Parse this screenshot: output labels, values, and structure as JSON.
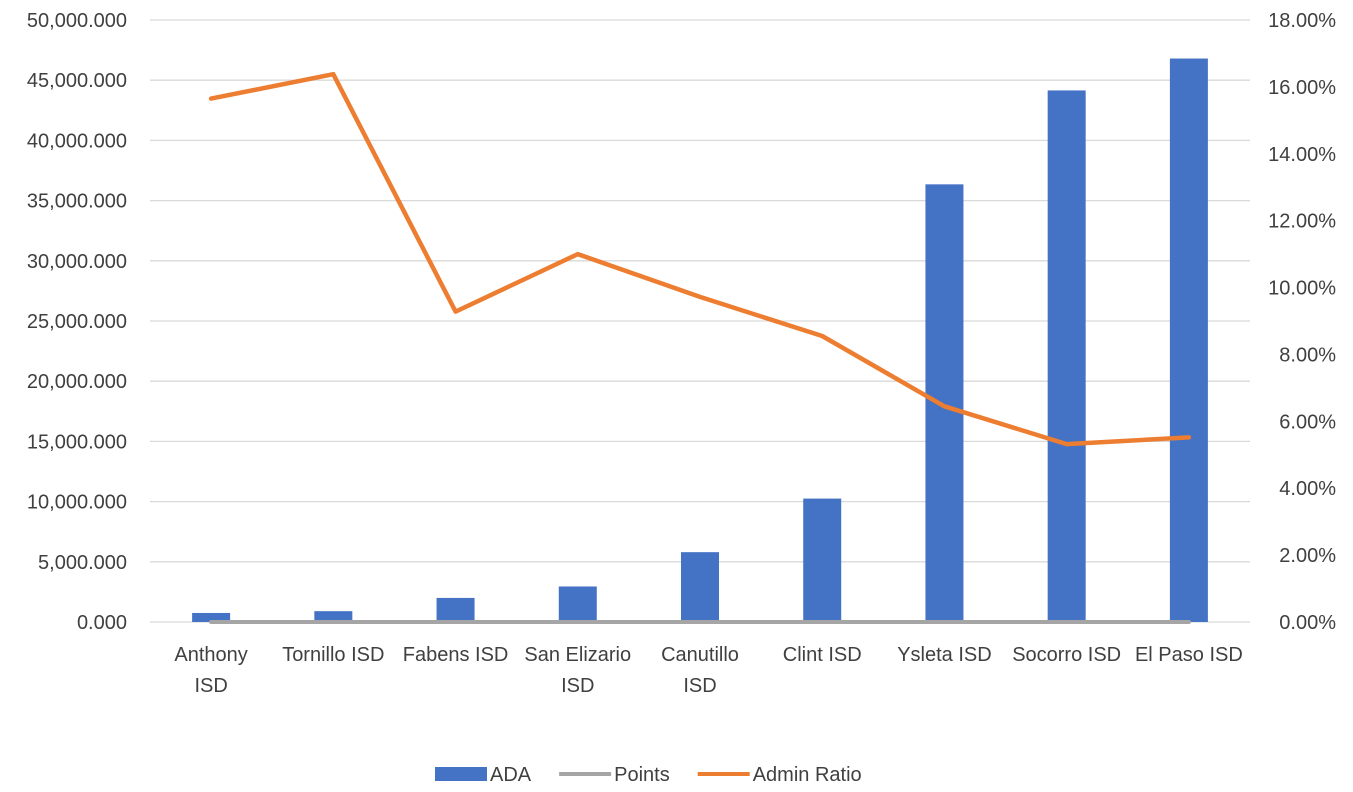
{
  "chart_data": {
    "type": "bar",
    "categories": [
      [
        "Anthony",
        "ISD"
      ],
      [
        "Tornillo ISD"
      ],
      [
        "Fabens ISD"
      ],
      [
        "San Elizario",
        "ISD"
      ],
      [
        "Canutillo",
        "ISD"
      ],
      [
        "Clint ISD"
      ],
      [
        "Ysleta ISD"
      ],
      [
        "Socorro ISD"
      ],
      [
        "El Paso ISD"
      ]
    ],
    "series": [
      {
        "name": "ADA",
        "kind": "bar",
        "axis": "left",
        "color": "#4472C4",
        "values": [
          750,
          900,
          2000,
          2950,
          5800,
          10250,
          36350,
          44150,
          46800
        ]
      },
      {
        "name": "Points",
        "kind": "line",
        "axis": "left",
        "color": "#A5A5A5",
        "values": [
          0,
          0,
          0,
          0,
          0,
          0,
          0,
          0,
          0
        ]
      },
      {
        "name": "Admin Ratio",
        "kind": "line",
        "axis": "right",
        "color": "#ED7D31",
        "values": [
          15.65,
          16.38,
          9.28,
          11.0,
          9.72,
          8.55,
          6.45,
          5.32,
          5.52
        ]
      }
    ],
    "y_left": {
      "ylim": [
        0,
        50000
      ],
      "ticks": [
        "0.000",
        "5,000.000",
        "10,000.000",
        "15,000.000",
        "20,000.000",
        "25,000.000",
        "30,000.000",
        "35,000.000",
        "40,000.000",
        "45,000.000",
        "50,000.000"
      ]
    },
    "y_right": {
      "ylim": [
        0,
        18
      ],
      "ticks": [
        "0.00%",
        "2.00%",
        "4.00%",
        "6.00%",
        "8.00%",
        "10.00%",
        "12.00%",
        "14.00%",
        "16.00%",
        "18.00%"
      ]
    },
    "grid": true,
    "legend": "bottom"
  }
}
